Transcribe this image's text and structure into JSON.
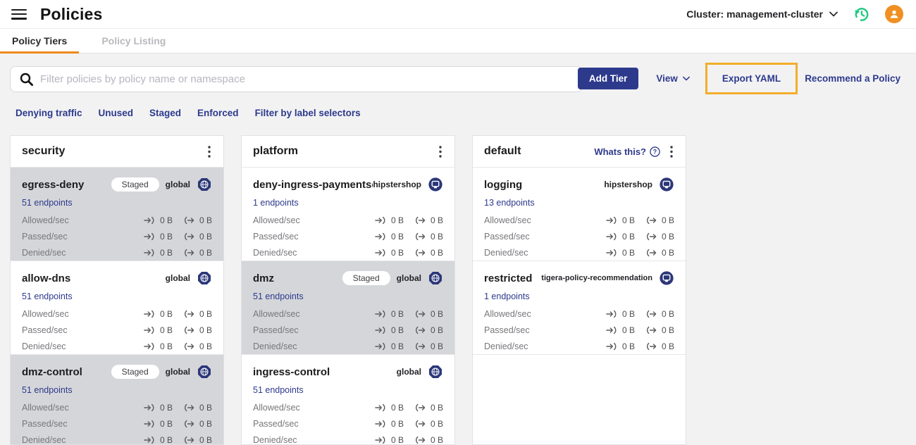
{
  "header": {
    "title": "Policies",
    "cluster_selector": "Cluster: management-cluster"
  },
  "icons": {
    "menu": "hamburger-icon",
    "cluster_chevron": "chevron-down-icon",
    "history": "history-restore-icon",
    "avatar": "user-avatar-icon",
    "search": "magnifier-icon",
    "tier_menu": "kebab-menu-icon",
    "help": "question-circle-icon",
    "ingress": "arrow-into-bracket-icon",
    "egress": "arrow-out-of-bracket-icon",
    "global_scope": "globe-octagon-icon",
    "namespace_scope": "namespace-icon"
  },
  "colors": {
    "primary_navy": "#2d3a8c",
    "tab_underline_orange": "#ee8a1d",
    "highlight_box_orange": "#f2ae2a",
    "avatar_orange": "#f09022",
    "history_green": "#1ec97e",
    "staged_card_gray": "#d5d6d9"
  },
  "tabs": [
    {
      "label": "Policy Tiers",
      "active": true
    },
    {
      "label": "Policy Listing",
      "active": false
    }
  ],
  "toolbar": {
    "search_placeholder": "Filter policies by policy name or namespace",
    "add_tier_label": "Add Tier",
    "view_label": "View",
    "export_yaml_label": "Export YAML",
    "recommend_label": "Recommend a Policy"
  },
  "filters": [
    "Denying traffic",
    "Unused",
    "Staged",
    "Enforced",
    "Filter by label selectors"
  ],
  "tiers": [
    {
      "name": "security",
      "help_label": null,
      "policies": [
        {
          "name": "egress-deny",
          "status": "Staged",
          "scope": "global",
          "scope_type": "global",
          "endpoints": "51 endpoints",
          "metrics": [
            {
              "label": "Allowed/sec",
              "in": "0 B",
              "out": "0 B"
            },
            {
              "label": "Passed/sec",
              "in": "0 B",
              "out": "0 B"
            },
            {
              "label": "Denied/sec",
              "in": "0 B",
              "out": "0 B"
            }
          ]
        },
        {
          "name": "allow-dns",
          "status": null,
          "scope": "global",
          "scope_type": "global",
          "endpoints": "51 endpoints",
          "metrics": [
            {
              "label": "Allowed/sec",
              "in": "0 B",
              "out": "0 B"
            },
            {
              "label": "Passed/sec",
              "in": "0 B",
              "out": "0 B"
            },
            {
              "label": "Denied/sec",
              "in": "0 B",
              "out": "0 B"
            }
          ]
        },
        {
          "name": "dmz-control",
          "status": "Staged",
          "scope": "global",
          "scope_type": "global",
          "endpoints": "51 endpoints",
          "metrics": [
            {
              "label": "Allowed/sec",
              "in": "0 B",
              "out": "0 B"
            },
            {
              "label": "Passed/sec",
              "in": "0 B",
              "out": "0 B"
            },
            {
              "label": "Denied/sec",
              "in": "0 B",
              "out": "0 B"
            }
          ]
        }
      ]
    },
    {
      "name": "platform",
      "help_label": null,
      "policies": [
        {
          "name": "deny-ingress-paymentservi...",
          "status": null,
          "scope": "hipstershop",
          "scope_type": "namespace",
          "endpoints": "1 endpoints",
          "metrics": [
            {
              "label": "Allowed/sec",
              "in": "0 B",
              "out": "0 B"
            },
            {
              "label": "Passed/sec",
              "in": "0 B",
              "out": "0 B"
            },
            {
              "label": "Denied/sec",
              "in": "0 B",
              "out": "0 B"
            }
          ]
        },
        {
          "name": "dmz",
          "status": "Staged",
          "scope": "global",
          "scope_type": "global",
          "endpoints": "51 endpoints",
          "metrics": [
            {
              "label": "Allowed/sec",
              "in": "0 B",
              "out": "0 B"
            },
            {
              "label": "Passed/sec",
              "in": "0 B",
              "out": "0 B"
            },
            {
              "label": "Denied/sec",
              "in": "0 B",
              "out": "0 B"
            }
          ]
        },
        {
          "name": "ingress-control",
          "status": null,
          "scope": "global",
          "scope_type": "global",
          "endpoints": "51 endpoints",
          "metrics": [
            {
              "label": "Allowed/sec",
              "in": "0 B",
              "out": "0 B"
            },
            {
              "label": "Passed/sec",
              "in": "0 B",
              "out": "0 B"
            },
            {
              "label": "Denied/sec",
              "in": "0 B",
              "out": "0 B"
            }
          ]
        }
      ]
    },
    {
      "name": "default",
      "help_label": "Whats this?",
      "policies": [
        {
          "name": "logging",
          "status": null,
          "scope": "hipstershop",
          "scope_type": "namespace",
          "endpoints": "13 endpoints",
          "metrics": [
            {
              "label": "Allowed/sec",
              "in": "0 B",
              "out": "0 B"
            },
            {
              "label": "Passed/sec",
              "in": "0 B",
              "out": "0 B"
            },
            {
              "label": "Denied/sec",
              "in": "0 B",
              "out": "0 B"
            }
          ]
        },
        {
          "name": "restricted",
          "status": null,
          "scope": "tigera-policy-recommendation",
          "scope_type": "namespace",
          "endpoints": "1 endpoints",
          "metrics": [
            {
              "label": "Allowed/sec",
              "in": "0 B",
              "out": "0 B"
            },
            {
              "label": "Passed/sec",
              "in": "0 B",
              "out": "0 B"
            },
            {
              "label": "Denied/sec",
              "in": "0 B",
              "out": "0 B"
            }
          ]
        }
      ]
    }
  ]
}
